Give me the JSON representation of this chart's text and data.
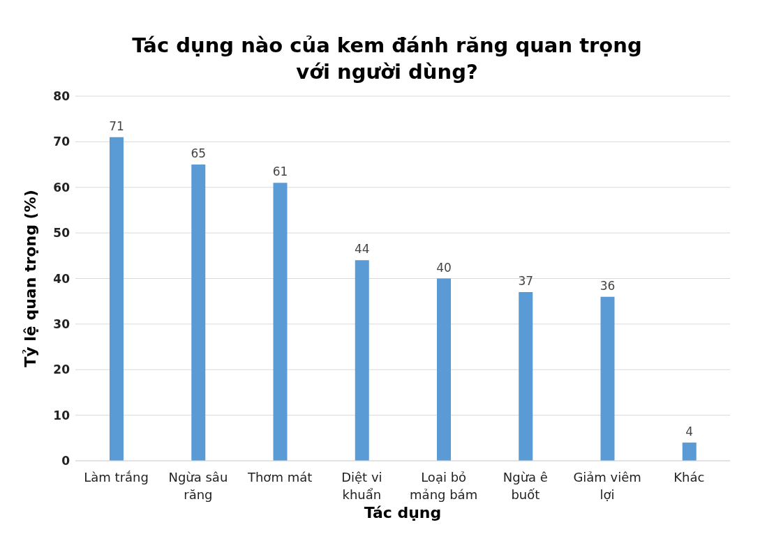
{
  "chart_data": {
    "type": "bar",
    "title": "Tác dụng nào của kem đánh răng quan trọng\nvới người dùng?",
    "xlabel": "Tác dụng",
    "ylabel": "Tỷ lệ quan trọng (%)",
    "categories": [
      "Làm trắng",
      "Ngừa sâu răng",
      "Thơm mát",
      "Diệt vi khuẩn",
      "Loại bỏ mảng bám",
      "Ngừa ê buốt",
      "Giảm viêm lợi",
      "Khác"
    ],
    "values": [
      71,
      65,
      61,
      44,
      40,
      37,
      36,
      4
    ],
    "color": "#5b9bd5",
    "ylim": [
      0,
      80
    ],
    "yticks": [
      0,
      10,
      20,
      30,
      40,
      50,
      60,
      70,
      80
    ],
    "grid": "y",
    "data_labels": true
  }
}
